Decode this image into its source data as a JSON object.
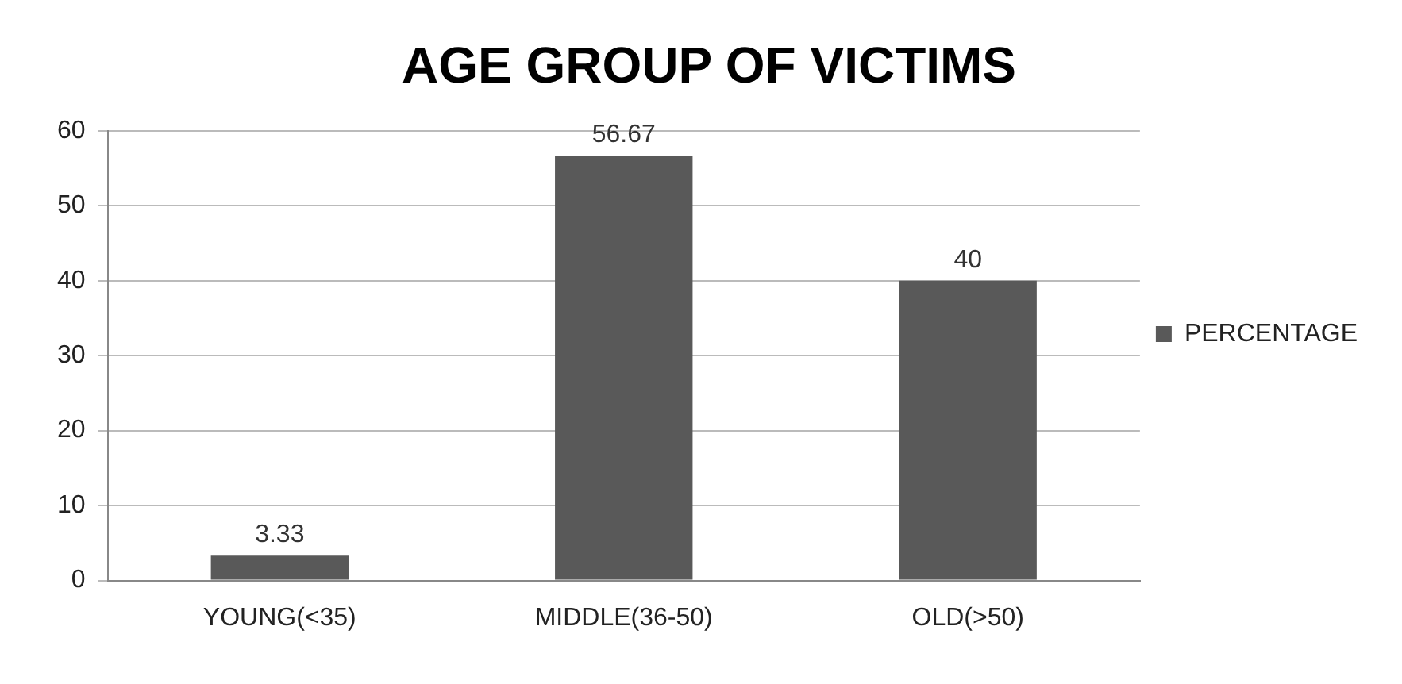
{
  "chart_data": {
    "type": "bar",
    "title": "AGE GROUP OF VICTIMS",
    "categories": [
      "YOUNG(<35)",
      "MIDDLE(36-50)",
      "OLD(>50)"
    ],
    "series": [
      {
        "name": "PERCENTAGE",
        "color": "#595959",
        "values": [
          3.33,
          56.67,
          40
        ]
      }
    ],
    "ylim": [
      0,
      60
    ],
    "yticks": [
      0,
      10,
      20,
      30,
      40,
      50,
      60
    ],
    "grid": "y",
    "legend": "right",
    "data_labels": true
  }
}
